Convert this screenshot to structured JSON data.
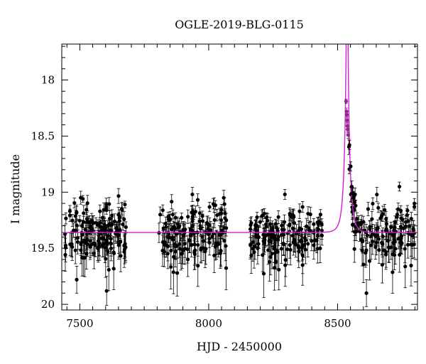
{
  "chart_data": {
    "type": "scatter",
    "title": "OGLE-2019-BLG-0115",
    "xlabel": "HJD - 2450000",
    "ylabel": "I magnitude",
    "xlim": [
      7430,
      8810
    ],
    "ylim": [
      20.05,
      17.68
    ],
    "y_inverted": true,
    "x_ticks": [
      7500,
      8000,
      8500
    ],
    "y_ticks": [
      18,
      18.5,
      19,
      19.5,
      20
    ],
    "y_tick_labels": [
      "18",
      "18.5",
      "19",
      "19.5",
      "20"
    ],
    "grid": false,
    "legend": "none",
    "colors": {
      "points": "#000000",
      "model": "#d21fd2",
      "peak_points": "#8a2a8a"
    },
    "model": {
      "type": "pspl",
      "baseline": 19.36,
      "t0": 8537,
      "u0": 0.056,
      "tE": 18,
      "blend_fraction": 1.0
    },
    "seasons": [
      {
        "start": 7440,
        "end": 7680,
        "n": 150
      },
      {
        "start": 7805,
        "end": 8070,
        "n": 150
      },
      {
        "start": 8160,
        "end": 8440,
        "n": 150
      },
      {
        "start": 8540,
        "end": 8800,
        "n": 130
      }
    ],
    "scatter_mean": 19.37,
    "scatter_sigma": 0.13,
    "peak_points": [
      {
        "x": 8533,
        "y": 18.19,
        "err": 0.02
      },
      {
        "x": 8535,
        "y": 18.28,
        "err": 0.03
      },
      {
        "x": 8536,
        "y": 18.31,
        "err": 0.03
      },
      {
        "x": 8537,
        "y": 18.36,
        "err": 0.03
      },
      {
        "x": 8538,
        "y": 18.41,
        "err": 0.03
      },
      {
        "x": 8539,
        "y": 18.44,
        "err": 0.03
      },
      {
        "x": 8541,
        "y": 18.49,
        "err": 0.03
      },
      {
        "x": 8546,
        "y": 18.58,
        "err": 0.04
      },
      {
        "x": 8551,
        "y": 18.77,
        "err": 0.04
      },
      {
        "x": 8555,
        "y": 18.95,
        "err": 0.05
      },
      {
        "x": 8558,
        "y": 19.01,
        "err": 0.05
      },
      {
        "x": 8562,
        "y": 19.05,
        "err": 0.05
      },
      {
        "x": 8566,
        "y": 19.09,
        "err": 0.05
      },
      {
        "x": 8570,
        "y": 19.12,
        "err": 0.05
      }
    ],
    "outliers": [
      {
        "x": 7512,
        "y": 19.06,
        "err": 0.03
      },
      {
        "x": 7675,
        "y": 19.11,
        "err": 0.03
      },
      {
        "x": 8740,
        "y": 18.95,
        "err": 0.04
      },
      {
        "x": 8798,
        "y": 19.13,
        "err": 0.03
      },
      {
        "x": 8612,
        "y": 19.9,
        "err": 0.12
      },
      {
        "x": 7604,
        "y": 19.88,
        "err": 0.13
      },
      {
        "x": 7488,
        "y": 19.78,
        "err": 0.12
      }
    ]
  }
}
